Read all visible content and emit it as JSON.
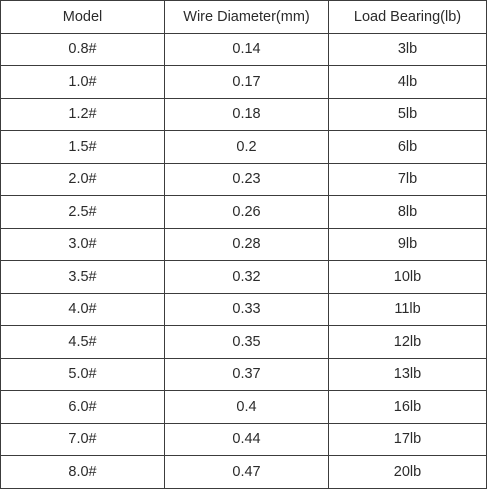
{
  "table": {
    "headers": [
      "Model",
      "Wire Diameter(mm)",
      "Load Bearing(lb)"
    ],
    "rows": [
      [
        "0.8#",
        "0.14",
        "3lb"
      ],
      [
        "1.0#",
        "0.17",
        "4lb"
      ],
      [
        "1.2#",
        "0.18",
        "5lb"
      ],
      [
        "1.5#",
        "0.2",
        "6lb"
      ],
      [
        "2.0#",
        "0.23",
        "7lb"
      ],
      [
        "2.5#",
        "0.26",
        "8lb"
      ],
      [
        "3.0#",
        "0.28",
        "9lb"
      ],
      [
        "3.5#",
        "0.32",
        "10lb"
      ],
      [
        "4.0#",
        "0.33",
        "11lb"
      ],
      [
        "4.5#",
        "0.35",
        "12lb"
      ],
      [
        "5.0#",
        "0.37",
        "13lb"
      ],
      [
        "6.0#",
        "0.4",
        "16lb"
      ],
      [
        "7.0#",
        "0.44",
        "17lb"
      ],
      [
        "8.0#",
        "0.47",
        "20lb"
      ]
    ]
  },
  "colors": {
    "border": "#3c3c3c",
    "text": "#2b2b2b",
    "background": "#ffffff"
  }
}
